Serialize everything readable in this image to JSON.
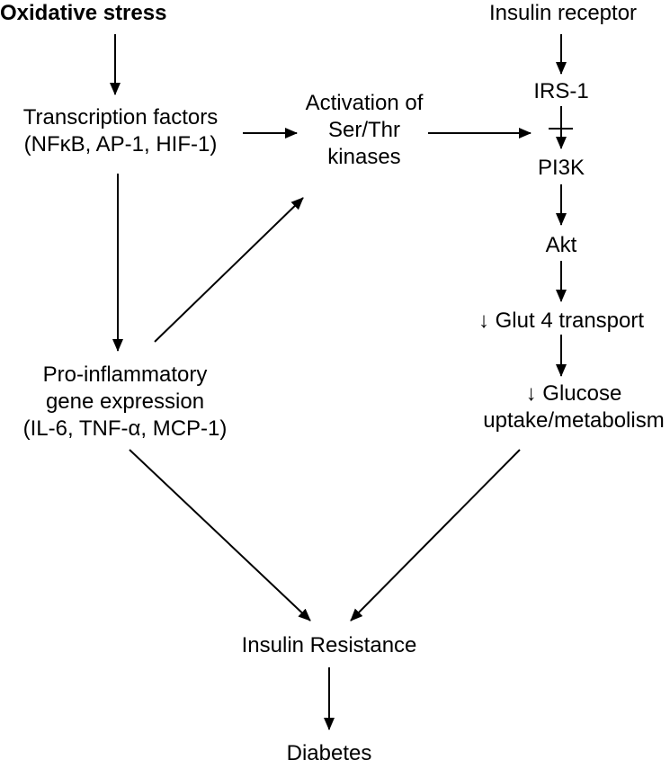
{
  "colors": {
    "line": "#000000",
    "text": "#000000",
    "background": "#ffffff"
  },
  "nodes": {
    "oxidative_stress": "Oxidative stress",
    "insulin_receptor": "Insulin receptor",
    "transcription_factors": [
      "Transcription factors",
      "(NFκB, AP-1, HIF-1)"
    ],
    "activation_kinases": [
      "Activation of",
      "Ser/Thr",
      "kinases"
    ],
    "irs1": "IRS-1",
    "pi3k": "PI3K",
    "akt": "Akt",
    "glut4": "↓ Glut 4 transport",
    "glucose_uptake": [
      "↓ Glucose",
      "uptake/metabolism"
    ],
    "proinflammatory": [
      "Pro-inflammatory",
      "gene expression",
      "(IL-6, TNF-α, MCP-1)"
    ],
    "insulin_resistance": "Insulin Resistance",
    "diabetes": "Diabetes"
  }
}
